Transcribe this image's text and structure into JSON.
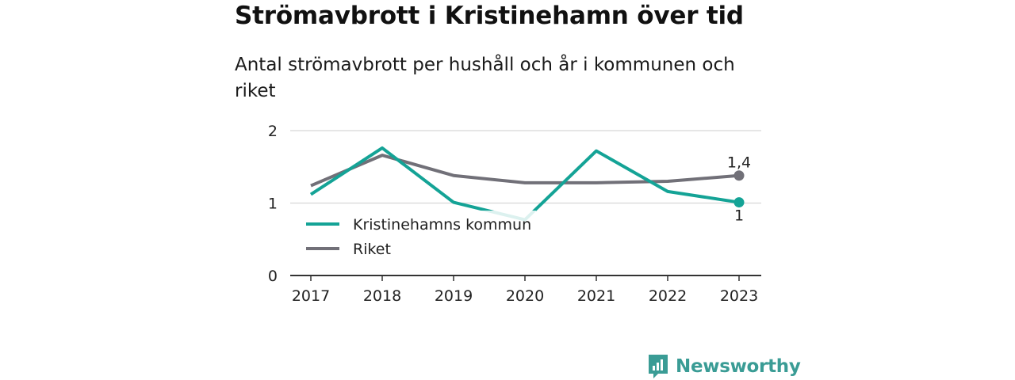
{
  "header": {
    "title": "Strömavbrott i Kristinehamn över tid",
    "subtitle": "Antal strömavbrott per hushåll och år i kommunen och riket"
  },
  "brand": {
    "name": "Newsworthy",
    "icon": "newsworthy-logo-icon",
    "color": "#3a9c95"
  },
  "chart_data": {
    "type": "line",
    "title": "Strömavbrott i Kristinehamn över tid",
    "subtitle": "Antal strömavbrott per hushåll och år i kommunen och riket",
    "x": [
      "2017",
      "2018",
      "2019",
      "2020",
      "2021",
      "2022",
      "2023"
    ],
    "y_ticks": [
      "0",
      "1",
      "2"
    ],
    "ylim": [
      0,
      2
    ],
    "grid": true,
    "legend_position": "bottom-left",
    "series": [
      {
        "name": "Kristinehamns kommun",
        "color": "#14a396",
        "values": [
          1.12,
          1.76,
          1.01,
          0.77,
          1.72,
          1.16,
          1.01
        ],
        "end_label": "1"
      },
      {
        "name": "Riket",
        "color": "#717078",
        "values": [
          1.24,
          1.66,
          1.38,
          1.28,
          1.28,
          1.3,
          1.38
        ],
        "end_label": "1,4"
      }
    ]
  }
}
